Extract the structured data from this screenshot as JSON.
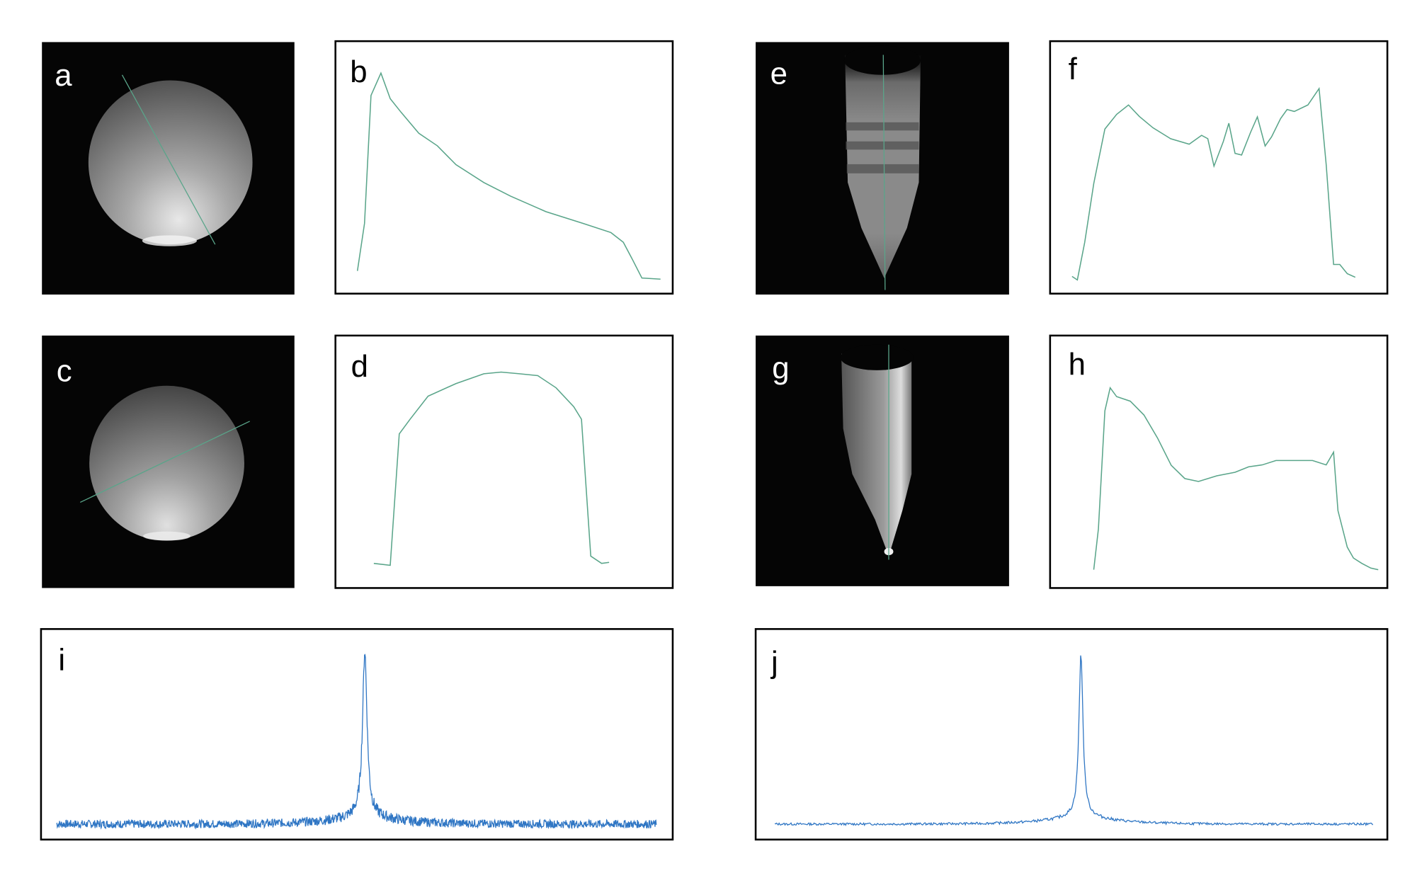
{
  "panels": {
    "a": "a",
    "b": "b",
    "c": "c",
    "d": "d",
    "e": "e",
    "f": "f",
    "g": "g",
    "h": "h",
    "i": "i",
    "j": "j"
  },
  "colors": {
    "profile_line": "#5aa58a",
    "spectrum_line": "#2f76c4",
    "frame": "#000000",
    "image_background": "#050505"
  },
  "chart_data": [
    {
      "panel": "b",
      "type": "line",
      "x": [
        1.2,
        3.5,
        5.6,
        8.8,
        11.8,
        15.3,
        21,
        27,
        33,
        42,
        50.6,
        62,
        74,
        83,
        87,
        90,
        93,
        99
      ],
      "y": [
        4.3,
        27,
        88,
        98.7,
        86.5,
        80,
        70,
        64,
        55,
        46.5,
        40,
        32.6,
        27,
        22.6,
        18,
        9.6,
        0.9,
        0.4
      ]
    },
    {
      "panel": "d",
      "type": "line",
      "x": [
        6.5,
        11.8,
        14.7,
        18.2,
        24,
        33,
        42,
        47.6,
        53.5,
        59.4,
        65.3,
        71,
        73.5,
        76.5,
        80,
        82.4
      ],
      "y": [
        5.2,
        4.3,
        67,
        74,
        85,
        91,
        95.7,
        96.5,
        95.7,
        94.8,
        89,
        80,
        74,
        8.7,
        5.2,
        5.7
      ]
    },
    {
      "panel": "f",
      "type": "line",
      "x": [
        1.2,
        2.9,
        5.3,
        8.2,
        11.8,
        15.6,
        19.4,
        22.9,
        27.3,
        33,
        39,
        43,
        45,
        47,
        50,
        51.8,
        53.8,
        55.9,
        58.8,
        61,
        63.5,
        65.6,
        68.5,
        70.6,
        72.9,
        77.3,
        80.9,
        83.2,
        85.6,
        87.6,
        90,
        92.6
      ],
      "y": [
        1.7,
        0,
        18,
        46,
        72,
        79,
        83.5,
        78,
        72.6,
        67.4,
        64.8,
        69,
        67.4,
        54.3,
        66,
        74.8,
        60.4,
        59.6,
        70.4,
        77.8,
        63.9,
        68.3,
        77,
        81.3,
        80.4,
        83.5,
        91.3,
        55,
        7.4,
        7.4,
        3,
        1.3
      ]
    },
    {
      "panel": "h",
      "type": "line",
      "x": [
        8.2,
        9.7,
        11.8,
        13.5,
        15.6,
        20,
        24.4,
        28.8,
        33.2,
        37.6,
        42,
        47.9,
        53.8,
        58.2,
        62.6,
        67,
        72.9,
        78.8,
        83.2,
        85.6,
        87,
        90,
        92,
        94.7,
        97.6,
        100
      ],
      "y": [
        2.2,
        21.7,
        78,
        89,
        84.8,
        82.6,
        76,
        65,
        52,
        45.7,
        44.3,
        47,
        48.7,
        51.3,
        52.2,
        54.3,
        54.3,
        54.3,
        52.2,
        58.3,
        30.4,
        13,
        7.8,
        5.2,
        3,
        2.2
      ]
    },
    {
      "panel": "i",
      "type": "line",
      "peak_center": 51.4,
      "peak_height": 100,
      "peak_fwhm": 0.9,
      "noise": "high"
    },
    {
      "panel": "j",
      "type": "line",
      "peak_center": 51.2,
      "peak_height": 100,
      "peak_fwhm": 0.8,
      "noise": "low"
    }
  ]
}
